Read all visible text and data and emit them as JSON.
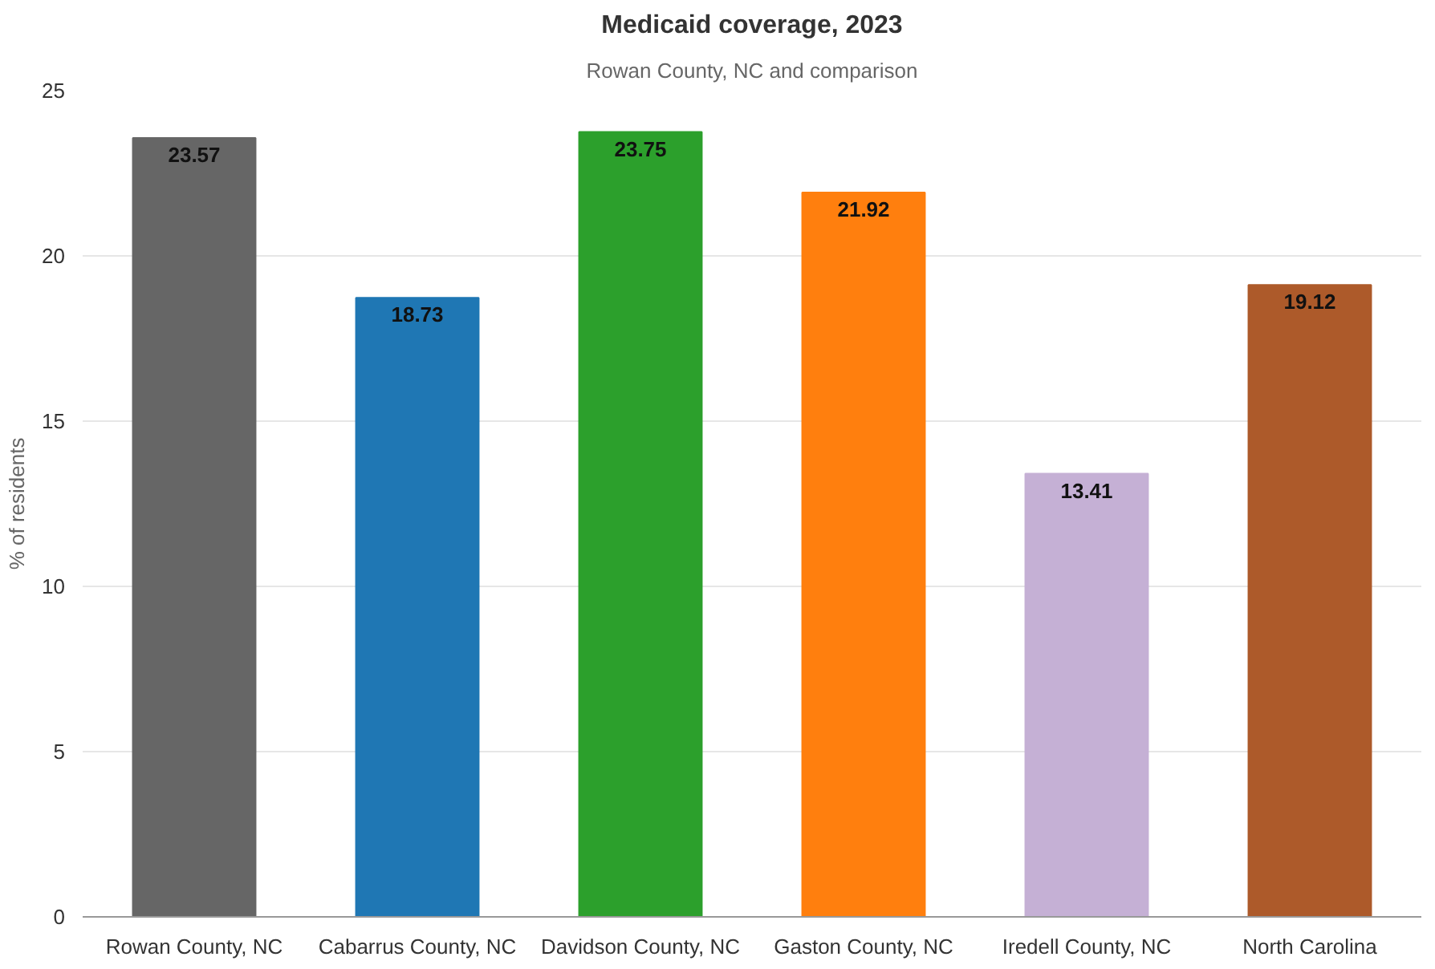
{
  "chart_data": {
    "type": "bar",
    "title": "Medicaid coverage, 2023",
    "subtitle": "Rowan County, NC and comparison",
    "ylabel": "% of residents",
    "categories": [
      "Rowan County, NC",
      "Cabarrus County, NC",
      "Davidson County, NC",
      "Gaston County, NC",
      "Iredell County, NC",
      "North Carolina"
    ],
    "values": [
      23.57,
      18.73,
      23.75,
      21.92,
      13.41,
      19.12
    ],
    "colors": [
      "#666666",
      "#1f77b4",
      "#2ca02c",
      "#ff7f0e",
      "#c5b0d5",
      "#ad5a2a"
    ],
    "ylim": [
      0,
      25
    ],
    "yticks": [
      0,
      5,
      10,
      15,
      20,
      25
    ],
    "grid": "y",
    "data_labels": true
  }
}
